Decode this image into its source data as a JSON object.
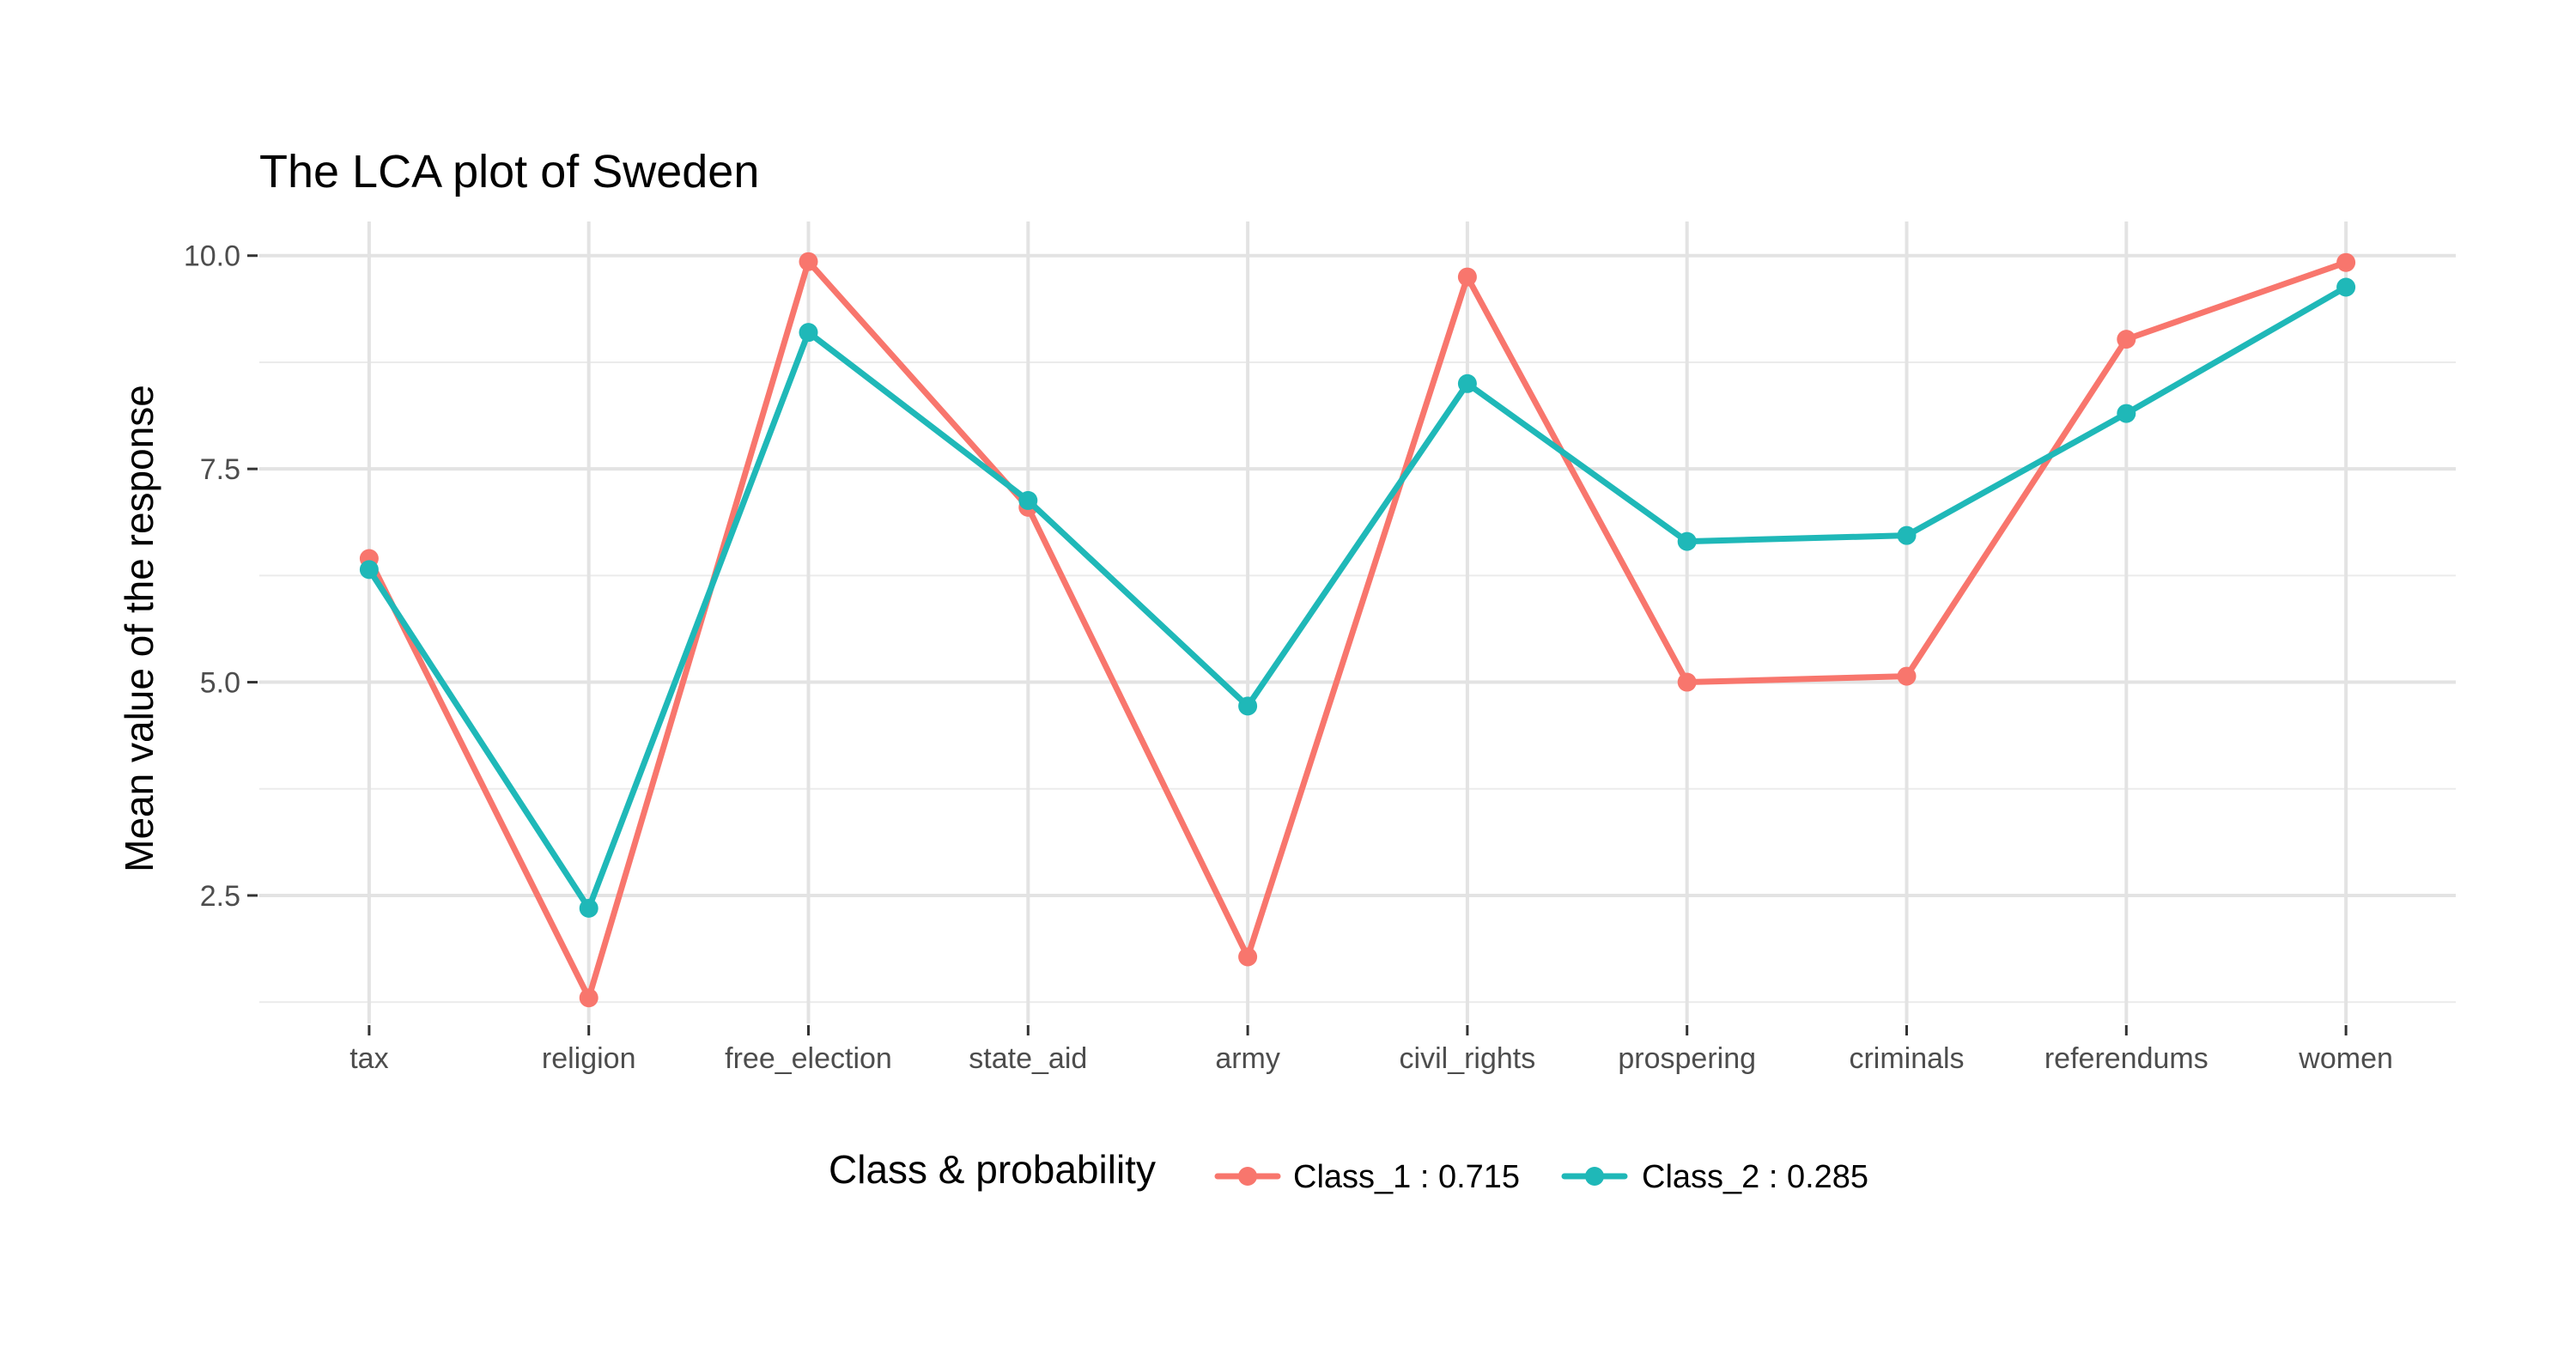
{
  "chart_data": {
    "type": "line",
    "title": "The LCA plot of Sweden",
    "xlabel": "",
    "ylabel": "Mean value of the response",
    "categories": [
      "tax",
      "religion",
      "free_election",
      "state_aid",
      "army",
      "civil_rights",
      "prospering",
      "criminals",
      "referendums",
      "women"
    ],
    "y_ticks": [
      2.5,
      5.0,
      7.5,
      10.0
    ],
    "y_tick_labels": [
      "2.5",
      "5.0",
      "7.5",
      "10.0"
    ],
    "ylim": [
      1.0,
      10.4
    ],
    "grid": true,
    "legend": {
      "title": "Class & probability",
      "position": "bottom"
    },
    "series": [
      {
        "name": "Class_1 : 0.715",
        "color": "#F8766D",
        "values": [
          6.45,
          1.3,
          9.93,
          7.05,
          1.78,
          9.75,
          5.0,
          5.07,
          9.02,
          9.92
        ]
      },
      {
        "name": "Class_2 : 0.285",
        "color": "#1FB8B8",
        "values": [
          6.32,
          2.35,
          9.1,
          7.13,
          4.72,
          8.5,
          6.65,
          6.72,
          8.15,
          9.63
        ]
      }
    ]
  }
}
